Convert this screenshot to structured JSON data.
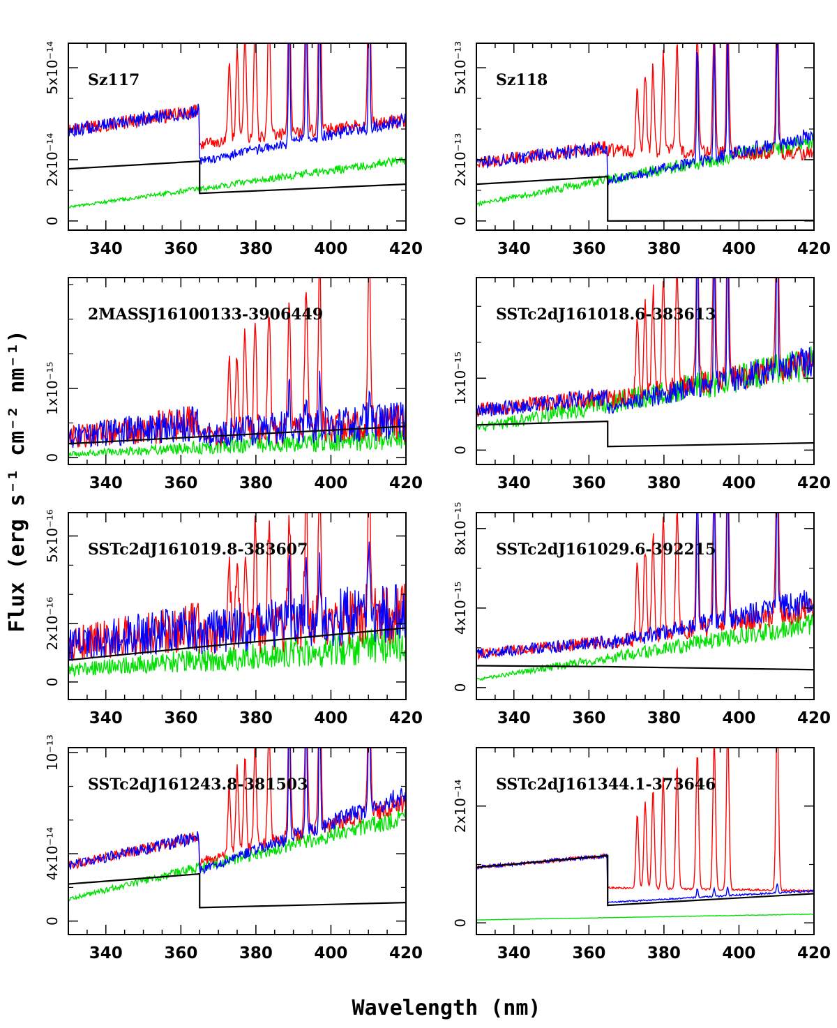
{
  "chart_data": {
    "type": "line",
    "xlabel": "Wavelength (nm)",
    "ylabel": "Flux (erg s⁻¹ cm⁻² nm⁻¹)",
    "xlim": [
      330,
      420
    ],
    "xticks": [
      340,
      360,
      380,
      400,
      420
    ],
    "xtick_labels": [
      "340",
      "360",
      "380",
      "400",
      "420"
    ],
    "series_colors": {
      "observed_red": "#ff0000",
      "model_blue": "#0000ff",
      "photosphere_green": "#00e000",
      "slab_black": "#000000"
    },
    "panels": [
      {
        "name": "Sz117",
        "ylim": [
          -3e-15,
          5.8e-14
        ],
        "yticks": [
          0,
          2e-14,
          5e-14
        ],
        "ytick_labels": [
          "0",
          "2x10⁻¹⁴",
          "5x10⁻¹⁴"
        ],
        "red_base": [
          2.95e-14,
          3.6e-14
        ],
        "red_after": [
          2.5e-14,
          3.3e-14
        ],
        "blue_after": [
          1.95e-14,
          3.3e-14
        ],
        "green": [
          4.5e-15,
          2e-14
        ],
        "black_before": [
          1.7e-14,
          1.95e-14
        ],
        "black_after": [
          9e-15,
          1.2e-14
        ],
        "line_amp": 6e-14,
        "blue_line_amp": 5e-14,
        "noise": 0.07
      },
      {
        "name": "Sz118",
        "ylim": [
          -3e-14,
          5.8e-13
        ],
        "yticks": [
          0,
          2e-13,
          5e-13
        ],
        "ytick_labels": [
          "0",
          "2x10⁻¹³",
          "5x10⁻¹³"
        ],
        "red_base": [
          1.9e-13,
          2.4e-13
        ],
        "red_after": [
          2.3e-13,
          2.2e-13
        ],
        "blue_after": [
          1.3e-13,
          2.8e-13
        ],
        "green": [
          5.5e-14,
          2.6e-13
        ],
        "black_before": [
          1.2e-13,
          1.45e-13
        ],
        "black_after": [
          0.0,
          2e-15
        ],
        "line_amp": 5e-13,
        "blue_line_amp": 4e-13,
        "noise": 0.1
      },
      {
        "name": "2MASSJ16100133-3906449",
        "ylim": [
          -1e-16,
          2.6e-15
        ],
        "yticks": [
          0,
          1e-15
        ],
        "ytick_labels": [
          "0",
          "1x10⁻¹⁵"
        ],
        "red_base": [
          3e-16,
          5e-16
        ],
        "red_after": [
          3e-16,
          5e-16
        ],
        "blue_after": [
          3.5e-16,
          5.5e-16
        ],
        "green": [
          5e-17,
          3e-16
        ],
        "black_before": [
          2e-16,
          3e-16
        ],
        "black_after": [
          3e-16,
          4.5e-16
        ],
        "line_amp": 2.5e-15,
        "blue_line_amp": 6e-16,
        "noise": 0.55
      },
      {
        "name": "SSTc2dJ161018.6-383613",
        "ylim": [
          -2e-16,
          2.4e-15
        ],
        "yticks": [
          0,
          1e-15
        ],
        "ytick_labels": [
          "0",
          "1x10⁻¹⁵"
        ],
        "red_base": [
          5.5e-16,
          7.5e-16
        ],
        "red_after": [
          7e-16,
          1.2e-15
        ],
        "blue_after": [
          6e-16,
          1.25e-15
        ],
        "green": [
          3e-16,
          1.2e-15
        ],
        "black_before": [
          3.5e-16,
          4e-16
        ],
        "black_after": [
          5e-17,
          1e-16
        ],
        "line_amp": 2.5e-15,
        "blue_line_amp": 2.2e-15,
        "noise": 0.18
      },
      {
        "name": "SSTc2dJ161019.8-383607",
        "ylim": [
          -6e-17,
          5.8e-16
        ],
        "yticks": [
          0,
          2e-16,
          5e-16
        ],
        "ytick_labels": [
          "0",
          "2x10⁻¹⁶",
          "5x10⁻¹⁶"
        ],
        "red_base": [
          1.3e-16,
          1.9e-16
        ],
        "red_after": [
          1.5e-16,
          2.4e-16
        ],
        "blue_after": [
          1.7e-16,
          2.5e-16
        ],
        "green": [
          4e-17,
          1.3e-16
        ],
        "black_before": [
          7.5e-17,
          1.2e-16
        ],
        "black_after": [
          1.2e-16,
          1.85e-16
        ],
        "line_amp": 5e-16,
        "blue_line_amp": 3e-16,
        "noise": 0.45
      },
      {
        "name": "SSTc2dJ161029.6-392215",
        "ylim": [
          -6e-16,
          8.8e-15
        ],
        "yticks": [
          0,
          4e-15,
          8e-15
        ],
        "ytick_labels": [
          "0",
          "4x10⁻¹⁵",
          "8x10⁻¹⁵"
        ],
        "red_base": [
          1.7e-15,
          2.3e-15
        ],
        "red_after": [
          2.2e-15,
          3.9e-15
        ],
        "blue_after": [
          2.2e-15,
          4.4e-15
        ],
        "green": [
          4e-16,
          3.2e-15
        ],
        "black_before": [
          1.1e-15,
          1.05e-15
        ],
        "black_after": [
          1.05e-15,
          9e-16
        ],
        "line_amp": 9e-15,
        "blue_line_amp": 8e-15,
        "noise": 0.15
      },
      {
        "name": "SSTc2dJ161243.8-381503",
        "ylim": [
          -8e-15,
          1.03e-13
        ],
        "yticks": [
          0,
          4e-14,
          1e-13
        ],
        "ytick_labels": [
          "0",
          "4x10⁻¹⁴",
          "10⁻¹³"
        ],
        "red_base": [
          3.3e-14,
          5e-14
        ],
        "red_after": [
          3.5e-14,
          7e-14
        ],
        "blue_after": [
          3e-14,
          7.5e-14
        ],
        "green": [
          1.3e-14,
          6.2e-14
        ],
        "black_before": [
          2.2e-14,
          2.8e-14
        ],
        "black_after": [
          8e-15,
          1.1e-14
        ],
        "line_amp": 1e-13,
        "blue_line_amp": 9e-14,
        "noise": 0.08
      },
      {
        "name": "SSTc2dJ161344.1-373646",
        "ylim": [
          -2e-15,
          3e-14
        ],
        "yticks": [
          0,
          2e-14
        ],
        "ytick_labels": [
          "0",
          "2x10⁻¹⁴"
        ],
        "red_base": [
          9.5e-15,
          1.15e-14
        ],
        "red_after": [
          6e-15,
          5.5e-15
        ],
        "blue_after": [
          3.5e-15,
          5.5e-15
        ],
        "green": [
          5e-16,
          1.5e-15
        ],
        "black_before": [
          9.5e-15,
          1.15e-14
        ],
        "black_after": [
          3e-15,
          5e-15
        ],
        "line_amp": 3e-14,
        "blue_line_amp": 1.5e-15,
        "noise": 0.03
      }
    ]
  }
}
